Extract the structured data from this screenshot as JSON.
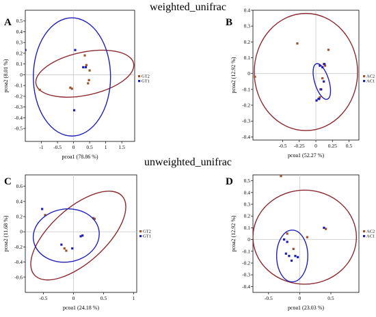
{
  "titles": {
    "top": "weighted_unifrac",
    "bottom": "unweighted_unifrac"
  },
  "colors": {
    "group1": "#8b2a30",
    "group2": "#1f1fb8",
    "marker_group1": "#a0522d",
    "zero_line": "#c8c8c8"
  },
  "chart_data": [
    {
      "panel": "A",
      "type": "scatter",
      "xlabel": "pcoa1 (78.86 %)",
      "ylabel": "pcoa2 (8.01 %)",
      "xlim": [
        -1.5,
        1.9
      ],
      "ylim": [
        -0.62,
        0.6
      ],
      "xticks": [
        -1,
        -0.5,
        0,
        0.5,
        1,
        1.5
      ],
      "yticks": [
        -0.5,
        -0.4,
        -0.3,
        -0.2,
        -0.1,
        0,
        0.1,
        0.2,
        0.3,
        0.4,
        0.5
      ],
      "grid": false,
      "legend": "right-center",
      "series": [
        {
          "name": "GT2",
          "color": "#8b2a30",
          "points": [
            [
              -1.05,
              -0.14
            ],
            [
              -0.1,
              -0.12
            ],
            [
              0.35,
              0.18
            ],
            [
              0.4,
              0.09
            ],
            [
              0.5,
              0.04
            ],
            [
              0.48,
              -0.05
            ],
            [
              0.45,
              -0.08
            ],
            [
              -0.05,
              -0.13
            ]
          ],
          "ellipse": {
            "cx": 0.35,
            "cy": 0.01,
            "rx": 1.55,
            "ry": 0.2,
            "angle_deg": 12
          }
        },
        {
          "name": "GT1",
          "color": "#1f1fb8",
          "points": [
            [
              -1.5,
              0.23
            ],
            [
              0.05,
              0.23
            ],
            [
              0.3,
              0.07
            ],
            [
              0.38,
              0.07
            ],
            [
              0.02,
              -0.33
            ]
          ],
          "ellipse": {
            "cx": -0.05,
            "cy": -0.02,
            "rx": 1.2,
            "ry": 0.55,
            "angle_deg": 0
          }
        }
      ]
    },
    {
      "panel": "B",
      "type": "scatter",
      "xlabel": "pcoa1 (52.27 %)",
      "ylabel": "pcoa2 (12.92 %)",
      "xlim": [
        -0.95,
        0.65
      ],
      "ylim": [
        -0.42,
        0.4
      ],
      "xticks": [
        -0.5,
        -0.25,
        0,
        0.25,
        0.5
      ],
      "yticks": [
        -0.4,
        -0.3,
        -0.2,
        -0.1,
        0,
        0.1,
        0.2,
        0.3,
        0.4
      ],
      "grid": false,
      "legend": "right-center",
      "series": [
        {
          "name": "AC2",
          "color": "#8b2a30",
          "points": [
            [
              -0.92,
              -0.02
            ],
            [
              -0.28,
              0.19
            ],
            [
              0.19,
              0.15
            ],
            [
              0.12,
              0.06
            ],
            [
              0.1,
              0.04
            ],
            [
              0.14,
              0.05
            ],
            [
              0.1,
              -0.03
            ],
            [
              0.07,
              -0.1
            ],
            [
              0.06,
              -0.15
            ]
          ],
          "ellipse": {
            "cx": -0.15,
            "cy": 0.01,
            "rx": 0.78,
            "ry": 0.37,
            "angle_deg": 0
          }
        },
        {
          "name": "AC1",
          "color": "#1f1fb8",
          "points": [
            [
              0.06,
              0.05
            ],
            [
              0.1,
              0.04
            ],
            [
              0.13,
              0.06
            ],
            [
              0.08,
              -0.1
            ],
            [
              0.12,
              -0.05
            ],
            [
              0.05,
              -0.16
            ],
            [
              0.04,
              -0.16
            ],
            [
              0.01,
              -0.17
            ]
          ],
          "ellipse": {
            "cx": 0.09,
            "cy": -0.05,
            "rx": 0.28,
            "ry": 0.045,
            "angle_deg": -73
          }
        }
      ]
    },
    {
      "panel": "C",
      "type": "scatter",
      "xlabel": "pcoa1 (24.18 %)",
      "ylabel": "pcoa2 (11.68 %)",
      "xlim": [
        -0.8,
        1.05
      ],
      "ylim": [
        -0.8,
        0.75
      ],
      "xticks": [
        -0.5,
        0,
        0.5,
        1
      ],
      "yticks": [
        -0.6,
        -0.4,
        -0.2,
        0,
        0.2,
        0.4,
        0.6
      ],
      "grid": false,
      "legend": "right-center",
      "series": [
        {
          "name": "GT2",
          "color": "#8b2a30",
          "points": [
            [
              -0.47,
              0.22
            ],
            [
              -0.15,
              -0.22
            ],
            [
              -0.12,
              -0.25
            ],
            [
              0.35,
              0.17
            ],
            [
              0.33,
              0.18
            ]
          ],
          "ellipse": {
            "cx": 0.08,
            "cy": -0.05,
            "rx": 0.98,
            "ry": 0.36,
            "angle_deg": 42
          }
        },
        {
          "name": "GT1",
          "color": "#1f1fb8",
          "points": [
            [
              -0.52,
              0.3
            ],
            [
              -0.2,
              -0.17
            ],
            [
              -0.02,
              -0.22
            ],
            [
              0.12,
              -0.06
            ],
            [
              0.15,
              -0.05
            ]
          ],
          "ellipse": {
            "cx": -0.12,
            "cy": -0.05,
            "rx": 0.55,
            "ry": 0.35,
            "angle_deg": 8
          }
        }
      ]
    },
    {
      "panel": "D",
      "type": "scatter",
      "xlabel": "pcoa1 (23.03 %)",
      "ylabel": "pcoa2 (12.92 %)",
      "xlim": [
        -0.75,
        0.95
      ],
      "ylim": [
        -0.45,
        0.55
      ],
      "xticks": [
        -0.5,
        0,
        0.5
      ],
      "yticks": [
        -0.4,
        -0.3,
        -0.2,
        -0.1,
        0,
        0.1,
        0.2,
        0.3,
        0.4,
        0.5
      ],
      "grid": false,
      "legend": "right-center",
      "series": [
        {
          "name": "AC2",
          "color": "#8b2a30",
          "points": [
            [
              -0.3,
              0.54
            ],
            [
              -0.2,
              0.05
            ],
            [
              0.12,
              0.02
            ],
            [
              0.42,
              0.09
            ],
            [
              -0.1,
              -0.08
            ]
          ],
          "ellipse": {
            "cx": 0.08,
            "cy": 0.02,
            "rx": 0.83,
            "ry": 0.4,
            "angle_deg": 0
          }
        },
        {
          "name": "AC1",
          "color": "#1f1fb8",
          "points": [
            [
              -0.25,
              0.0
            ],
            [
              -0.2,
              -0.02
            ],
            [
              -0.22,
              -0.12
            ],
            [
              -0.17,
              -0.14
            ],
            [
              -0.13,
              -0.18
            ],
            [
              -0.07,
              -0.14
            ],
            [
              -0.03,
              -0.15
            ],
            [
              0.39,
              0.1
            ]
          ],
          "ellipse": {
            "cx": -0.12,
            "cy": -0.14,
            "rx": 0.25,
            "ry": 0.22,
            "angle_deg": 0
          }
        }
      ]
    }
  ]
}
